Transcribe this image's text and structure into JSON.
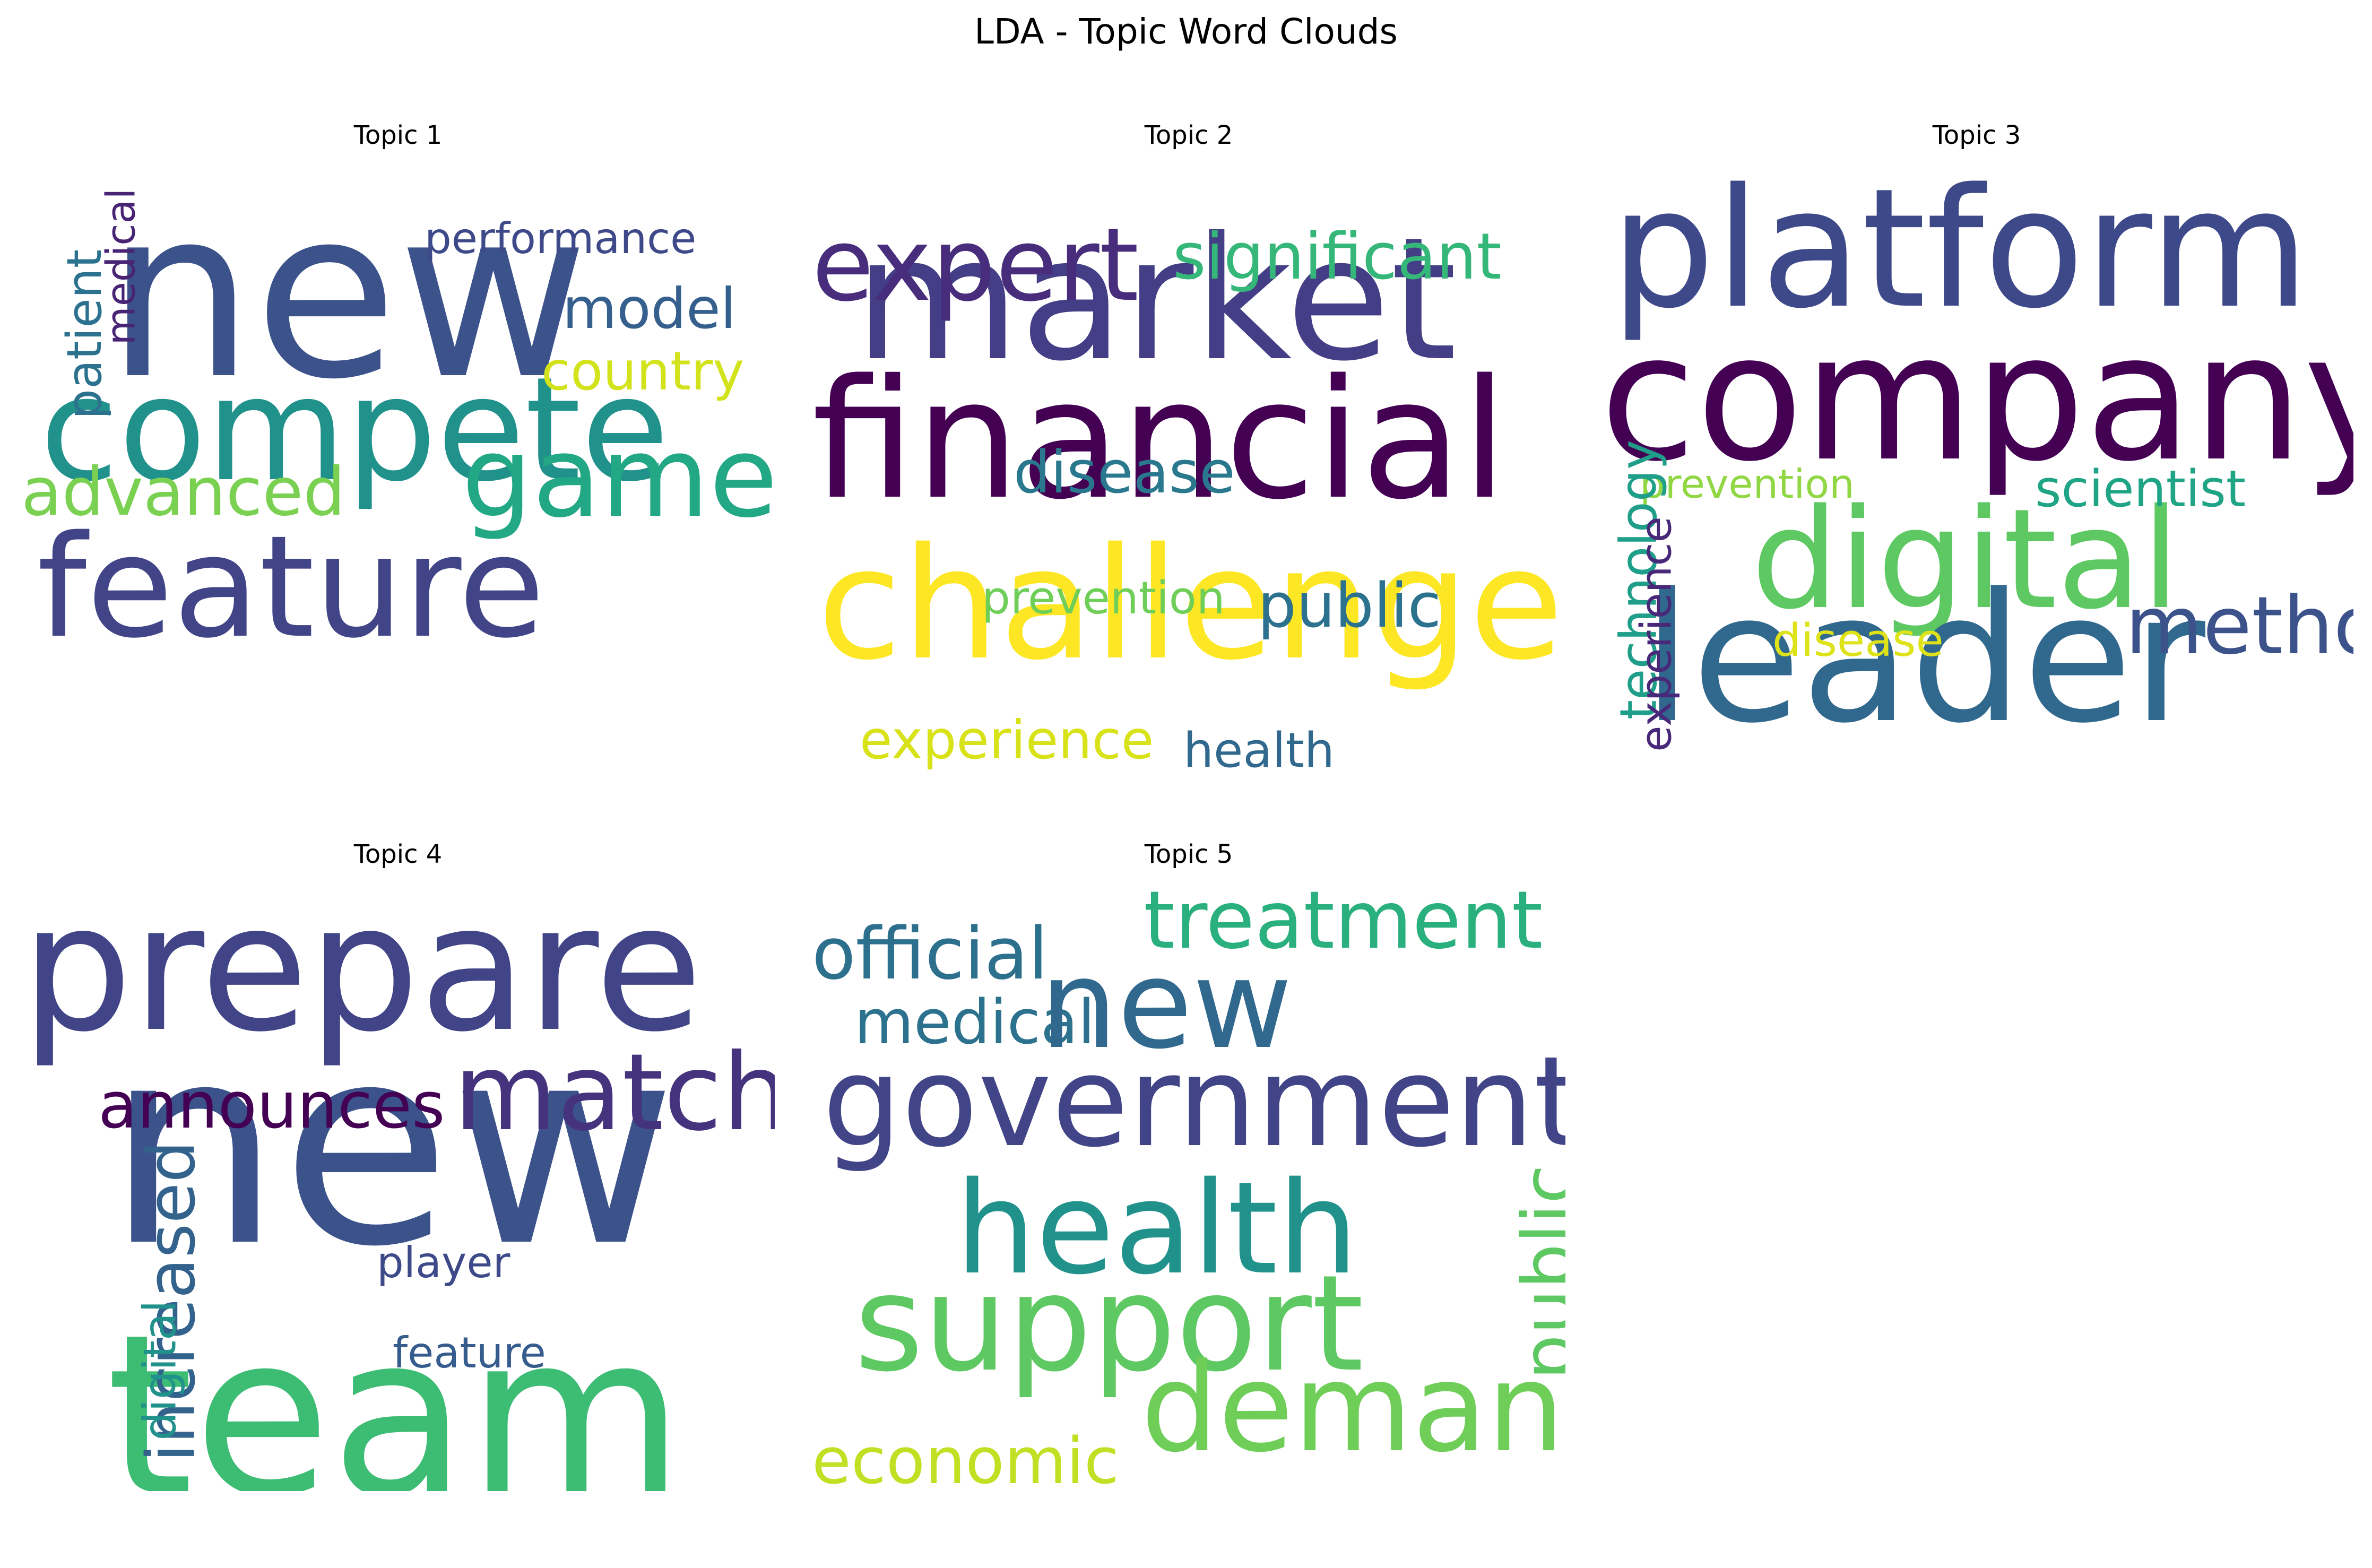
{
  "figure": {
    "title": "LDA - Topic Word Clouds"
  },
  "chart_data": {
    "type": "wordcloud",
    "grid": "off",
    "axes": "off",
    "colormap": "viridis",
    "panels": [
      {
        "title": "Topic 1",
        "words": [
          {
            "text": "new",
            "weight": 1.0,
            "color": "#3b528b",
            "vertical": false
          },
          {
            "text": "compete",
            "weight": 0.62,
            "color": "#21918c",
            "vertical": false
          },
          {
            "text": "feature",
            "weight": 0.6,
            "color": "#414487",
            "vertical": false
          },
          {
            "text": "game",
            "weight": 0.42,
            "color": "#22a884",
            "vertical": false
          },
          {
            "text": "advanced",
            "weight": 0.27,
            "color": "#7ad151",
            "vertical": false
          },
          {
            "text": "model",
            "weight": 0.22,
            "color": "#355f8d",
            "vertical": false
          },
          {
            "text": "country",
            "weight": 0.2,
            "color": "#d2e21b",
            "vertical": false
          },
          {
            "text": "performance",
            "weight": 0.18,
            "color": "#3e4989",
            "vertical": false
          },
          {
            "text": "patient",
            "weight": 0.2,
            "color": "#2c728e",
            "vertical": true
          },
          {
            "text": "medical",
            "weight": 0.17,
            "color": "#482475",
            "vertical": true
          }
        ]
      },
      {
        "title": "Topic 2",
        "words": [
          {
            "text": "market",
            "weight": 0.72,
            "color": "#433e85",
            "vertical": false
          },
          {
            "text": "financial",
            "weight": 0.7,
            "color": "#440154",
            "vertical": false
          },
          {
            "text": "challenge",
            "weight": 0.68,
            "color": "#fde725",
            "vertical": false
          },
          {
            "text": "expert",
            "weight": 0.42,
            "color": "#472d7b",
            "vertical": false
          },
          {
            "text": "significant",
            "weight": 0.28,
            "color": "#35b779",
            "vertical": false
          },
          {
            "text": "disease",
            "weight": 0.24,
            "color": "#2a788e",
            "vertical": false
          },
          {
            "text": "public",
            "weight": 0.25,
            "color": "#2c728e",
            "vertical": false
          },
          {
            "text": "prevention",
            "weight": 0.18,
            "color": "#6ece58",
            "vertical": false
          },
          {
            "text": "experience",
            "weight": 0.22,
            "color": "#d8e219",
            "vertical": false
          },
          {
            "text": "health",
            "weight": 0.19,
            "color": "#31688e",
            "vertical": false
          }
        ]
      },
      {
        "title": "Topic 3",
        "words": [
          {
            "text": "platform",
            "weight": 0.72,
            "color": "#3e4989",
            "vertical": false
          },
          {
            "text": "company",
            "weight": 0.74,
            "color": "#440154",
            "vertical": false
          },
          {
            "text": "digital",
            "weight": 0.6,
            "color": "#5ec962",
            "vertical": false
          },
          {
            "text": "leader",
            "weight": 0.75,
            "color": "#31688e",
            "vertical": false
          },
          {
            "text": "method",
            "weight": 0.35,
            "color": "#3b528b",
            "vertical": false
          },
          {
            "text": "scientist",
            "weight": 0.21,
            "color": "#20a486",
            "vertical": false
          },
          {
            "text": "prevention",
            "weight": 0.16,
            "color": "#90d743",
            "vertical": false
          },
          {
            "text": "disease",
            "weight": 0.19,
            "color": "#dde318",
            "vertical": false
          },
          {
            "text": "technology",
            "weight": 0.21,
            "color": "#1f9e89",
            "vertical": true
          },
          {
            "text": "experience",
            "weight": 0.18,
            "color": "#482878",
            "vertical": true
          }
        ]
      },
      {
        "title": "Topic 4",
        "words": [
          {
            "text": "prepare",
            "weight": 0.75,
            "color": "#414487",
            "vertical": false
          },
          {
            "text": "new",
            "weight": 1.0,
            "color": "#3b528b",
            "vertical": false
          },
          {
            "text": "team",
            "weight": 0.95,
            "color": "#3dbc74",
            "vertical": false
          },
          {
            "text": "match",
            "weight": 0.45,
            "color": "#46337e",
            "vertical": false
          },
          {
            "text": "announces",
            "weight": 0.26,
            "color": "#440154",
            "vertical": false
          },
          {
            "text": "player",
            "weight": 0.17,
            "color": "#3e4989",
            "vertical": false
          },
          {
            "text": "feature",
            "weight": 0.17,
            "color": "#365c8d",
            "vertical": false
          },
          {
            "text": "increased",
            "weight": 0.27,
            "color": "#33638d",
            "vertical": true
          },
          {
            "text": "digital",
            "weight": 0.18,
            "color": "#21918c",
            "vertical": true
          },
          {
            "text": "platform",
            "weight": 0.17,
            "color": "#4ac16d",
            "vertical": true
          }
        ]
      },
      {
        "title": "Topic 5",
        "words": [
          {
            "text": "treatment",
            "weight": 0.3,
            "color": "#2ab07f",
            "vertical": false
          },
          {
            "text": "official",
            "weight": 0.3,
            "color": "#2d708e",
            "vertical": false
          },
          {
            "text": "medical",
            "weight": 0.55,
            "color": "#2c728e",
            "vertical": false
          },
          {
            "text": "new",
            "weight": 0.26,
            "color": "#31688e",
            "vertical": false
          },
          {
            "text": "government",
            "weight": 0.55,
            "color": "#414487",
            "vertical": false
          },
          {
            "text": "health",
            "weight": 0.55,
            "color": "#21918c",
            "vertical": false
          },
          {
            "text": "support",
            "weight": 0.58,
            "color": "#5ec962",
            "vertical": false
          },
          {
            "text": "demand",
            "weight": 0.55,
            "color": "#6ece58",
            "vertical": false
          },
          {
            "text": "economic",
            "weight": 0.28,
            "color": "#c2df23",
            "vertical": false
          },
          {
            "text": "public",
            "weight": 0.3,
            "color": "#5ec962",
            "vertical": true
          }
        ]
      }
    ]
  }
}
